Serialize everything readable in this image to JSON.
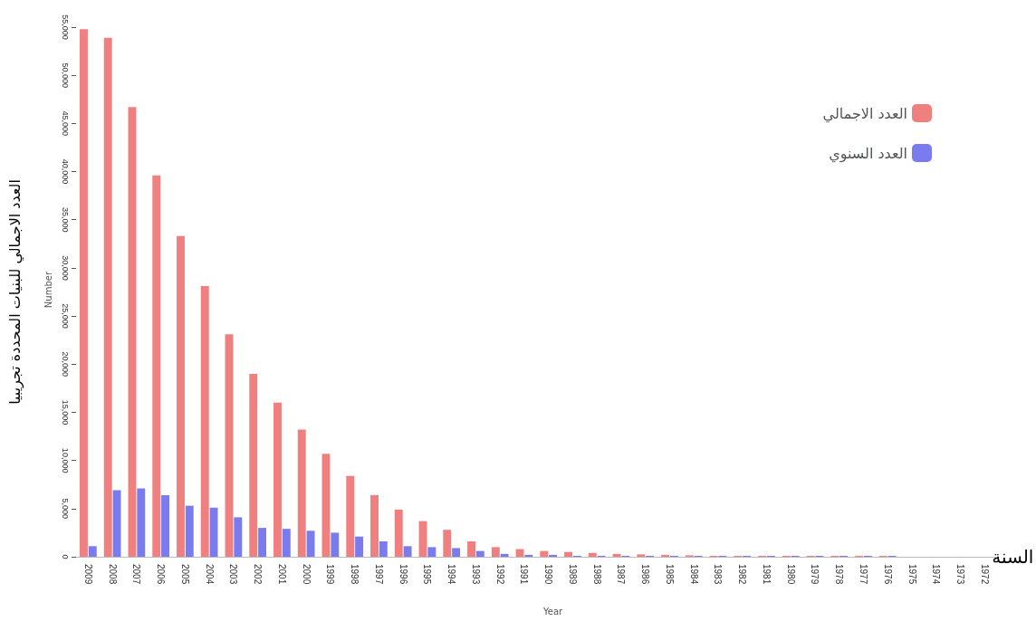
{
  "chart_data": {
    "type": "bar",
    "ylabel": "العدد الاجمالي للبنيات المحددة تجريبيا",
    "xlabel": "السنة",
    "annotations": [
      "Number",
      "Year"
    ],
    "categories": [
      "2009",
      "2008",
      "2007",
      "2006",
      "2005",
      "2004",
      "2003",
      "2002",
      "2001",
      "2000",
      "1999",
      "1998",
      "1997",
      "1996",
      "1995",
      "1994",
      "1993",
      "1992",
      "1991",
      "1990",
      "1989",
      "1988",
      "1987",
      "1986",
      "1985",
      "1984",
      "1983",
      "1982",
      "1981",
      "1980",
      "1979",
      "1978",
      "1977",
      "1976",
      "1975",
      "1974",
      "1973",
      "1972"
    ],
    "series": [
      {
        "name": "العدد الاجمالي",
        "color": "#f08080",
        "values": [
          54800,
          53900,
          46700,
          39600,
          33300,
          28100,
          23100,
          19000,
          16000,
          13200,
          10700,
          8400,
          6400,
          4900,
          3700,
          2800,
          1600,
          1000,
          800,
          600,
          500,
          400,
          300,
          250,
          200,
          150,
          100,
          100,
          100,
          100,
          100,
          100,
          100,
          100,
          null,
          null,
          null,
          null
        ]
      },
      {
        "name": "العدد السنوي",
        "color": "#7b7bf0",
        "values": [
          1100,
          6900,
          7100,
          6400,
          5300,
          5100,
          4100,
          3000,
          2900,
          2700,
          2500,
          2100,
          1600,
          1100,
          1000,
          900,
          600,
          300,
          200,
          200,
          100,
          100,
          100,
          100,
          100,
          100,
          100,
          100,
          100,
          100,
          100,
          100,
          100,
          100,
          null,
          null,
          null,
          null
        ]
      }
    ],
    "ylim": [
      0,
      55000
    ],
    "yticks": [
      0,
      {
        "value": 5000,
        "label": "5,000"
      },
      {
        "value": 10000,
        "label": "10,000"
      },
      {
        "value": 15000,
        "label": "15,000"
      },
      {
        "value": 20000,
        "label": "20,000"
      },
      {
        "value": 25000,
        "label": "25,000"
      },
      {
        "value": 30000,
        "label": "30,000"
      },
      {
        "value": 35000,
        "label": "35,000"
      },
      {
        "value": 40000,
        "label": "40,000"
      },
      {
        "value": 45000,
        "label": "45,000"
      },
      {
        "value": 50000,
        "label": "50,000"
      },
      {
        "value": 55000,
        "label": "55,000"
      }
    ],
    "grid": false,
    "legend": "top right"
  }
}
